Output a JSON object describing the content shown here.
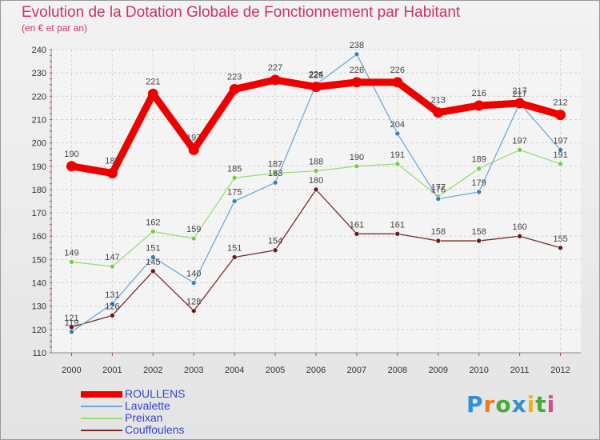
{
  "title": "Evolution de la Dotation Globale de Fonctionnement par Habitant",
  "subtitle": "(en € et par an)",
  "logo": {
    "text": "Proxiti",
    "letters": [
      {
        "ch": "P",
        "color": "#2f8fd8"
      },
      {
        "ch": "r",
        "color": "#f07a1a"
      },
      {
        "ch": "o",
        "color": "#4aa83c"
      },
      {
        "ch": "x",
        "color": "#2f8fd8"
      },
      {
        "ch": "i",
        "color": "#f0b21a"
      },
      {
        "ch": "t",
        "color": "#4aa83c"
      },
      {
        "ch": "i",
        "color": "#d94a8c"
      }
    ]
  },
  "chart_data": {
    "type": "line",
    "title": "Evolution de la Dotation Globale de Fonctionnement par Habitant",
    "subtitle": "(en € et par an)",
    "xlabel": "",
    "ylabel": "",
    "ylim": [
      110,
      240
    ],
    "yticks": [
      110,
      120,
      130,
      140,
      150,
      160,
      170,
      180,
      190,
      200,
      210,
      220,
      230,
      240
    ],
    "categories": [
      "2000",
      "2001",
      "2002",
      "2003",
      "2004",
      "2005",
      "2006",
      "2007",
      "2008",
      "2009",
      "2010",
      "2011",
      "2012"
    ],
    "grid": true,
    "legend_position": "bottom-left",
    "series": [
      {
        "name": "ROULLENS",
        "color": "#ee0000",
        "values": [
          190,
          187,
          221,
          197,
          223,
          227,
          224,
          226,
          226,
          213,
          216,
          217,
          212
        ]
      },
      {
        "name": "Lavalette",
        "color": "#6fa8dc",
        "marker": "#3a7fc0",
        "values": [
          119,
          131,
          151,
          140,
          175,
          183,
          225,
          238,
          204,
          176,
          179,
          217,
          197
        ]
      },
      {
        "name": "Preixan",
        "color": "#99dd77",
        "marker": "#77cc44",
        "values": [
          149,
          147,
          162,
          159,
          185,
          187,
          188,
          190,
          191,
          177,
          189,
          197,
          191
        ]
      },
      {
        "name": "Couffoulens",
        "color": "#7a2a2a",
        "marker": "#6a1a1a",
        "values": [
          121,
          126,
          145,
          128,
          151,
          154,
          180,
          161,
          161,
          158,
          158,
          160,
          155
        ]
      }
    ]
  }
}
